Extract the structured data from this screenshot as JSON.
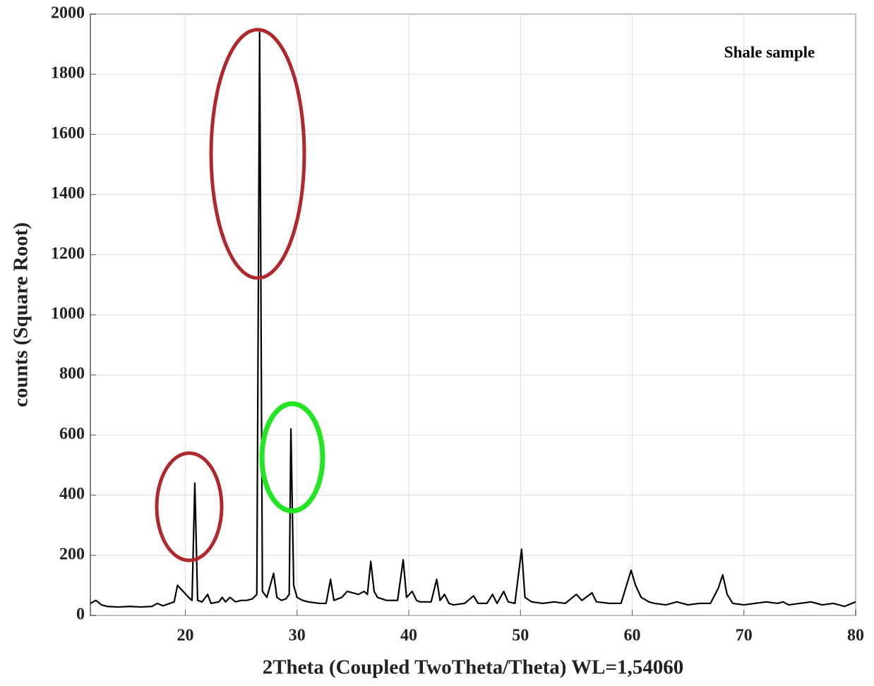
{
  "chart_data": {
    "type": "line",
    "annotation": "Shale sample",
    "xlabel": "2Theta (Coupled TwoTheta/Theta) WL=1,54060",
    "ylabel": "counts (Square Root)",
    "xlim": [
      11.5,
      80
    ],
    "ylim": [
      0,
      2000
    ],
    "xticks": [
      20,
      30,
      40,
      50,
      60,
      70,
      80
    ],
    "yticks": [
      0,
      200,
      400,
      600,
      800,
      1000,
      1200,
      1400,
      1600,
      1800,
      2000
    ],
    "grid": true,
    "series": [
      {
        "name": "Shale sample",
        "color": "#000000",
        "x": [
          11.5,
          12,
          12.5,
          13,
          14,
          15,
          16,
          17,
          17.5,
          18,
          19,
          19.3,
          19.8,
          20.3,
          20.6,
          20.85,
          21.1,
          21.5,
          22,
          22.3,
          23,
          23.3,
          23.6,
          24,
          24.5,
          25,
          25.5,
          26,
          26.4,
          26.65,
          26.9,
          27.3,
          27.9,
          28.2,
          28.6,
          29,
          29.3,
          29.45,
          29.7,
          30,
          30.5,
          31,
          32,
          32.6,
          33,
          33.3,
          34,
          34.5,
          35,
          35.5,
          36,
          36.3,
          36.6,
          36.9,
          37.2,
          38,
          39,
          39.5,
          39.8,
          40.3,
          40.7,
          41,
          42,
          42.5,
          42.8,
          43.2,
          43.6,
          44,
          45,
          45.8,
          46.2,
          47,
          47.5,
          47.9,
          48.5,
          48.9,
          49.5,
          50.1,
          50.4,
          51,
          52,
          53,
          54,
          55,
          55.5,
          56.4,
          56.8,
          58,
          59,
          59.9,
          60.3,
          60.8,
          61.5,
          62,
          63,
          64,
          65,
          66,
          67,
          67.7,
          68.1,
          68.5,
          69,
          70,
          71,
          72,
          73,
          73.5,
          74,
          75,
          76,
          77,
          78,
          79,
          80
        ],
        "values": [
          40,
          50,
          35,
          30,
          28,
          30,
          28,
          30,
          40,
          32,
          45,
          100,
          80,
          60,
          50,
          440,
          50,
          45,
          70,
          40,
          45,
          60,
          45,
          60,
          45,
          50,
          50,
          55,
          70,
          1940,
          80,
          60,
          140,
          60,
          50,
          55,
          70,
          620,
          100,
          60,
          50,
          45,
          40,
          40,
          120,
          50,
          60,
          80,
          75,
          70,
          80,
          70,
          180,
          80,
          60,
          50,
          50,
          185,
          60,
          80,
          50,
          45,
          45,
          120,
          50,
          70,
          40,
          35,
          40,
          65,
          40,
          40,
          70,
          40,
          80,
          45,
          40,
          220,
          60,
          45,
          40,
          45,
          40,
          70,
          50,
          75,
          45,
          40,
          40,
          150,
          100,
          60,
          45,
          40,
          35,
          45,
          35,
          40,
          40,
          90,
          135,
          70,
          40,
          35,
          40,
          45,
          40,
          45,
          35,
          40,
          45,
          35,
          40,
          30,
          45
        ]
      }
    ]
  }
}
